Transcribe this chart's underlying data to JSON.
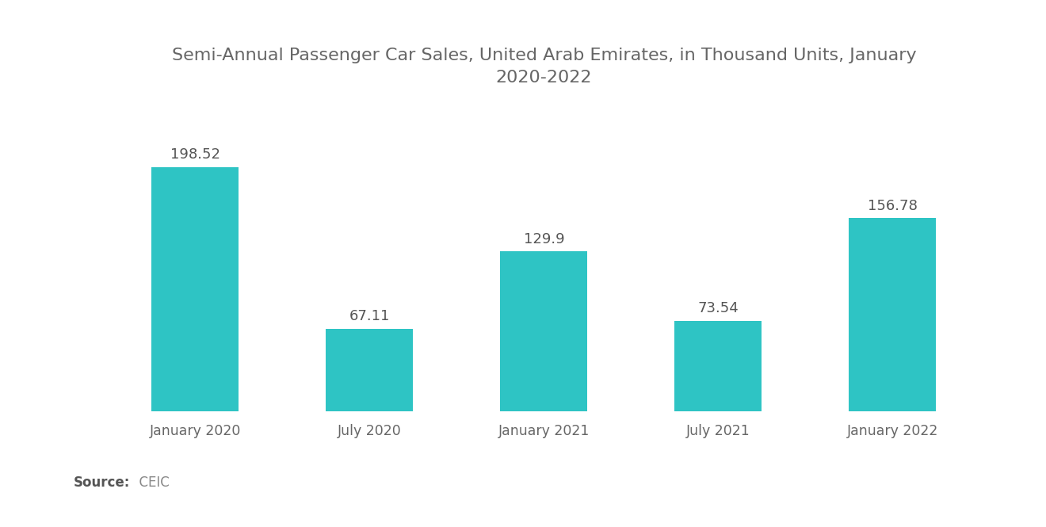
{
  "title": "Semi-Annual Passenger Car Sales, United Arab Emirates, in Thousand Units, January\n2020-2022",
  "categories": [
    "January 2020",
    "July 2020",
    "January 2021",
    "July 2021",
    "January 2022"
  ],
  "values": [
    198.52,
    67.11,
    129.9,
    73.54,
    156.78
  ],
  "bar_color": "#2EC4C4",
  "background_color": "#ffffff",
  "title_fontsize": 16,
  "label_fontsize": 12.5,
  "value_fontsize": 13,
  "source_bold": "Source:",
  "source_normal": "  CEIC",
  "ylim": [
    0,
    240
  ],
  "bar_width": 0.5,
  "title_color": "#666666",
  "tick_color": "#666666",
  "value_color": "#555555"
}
